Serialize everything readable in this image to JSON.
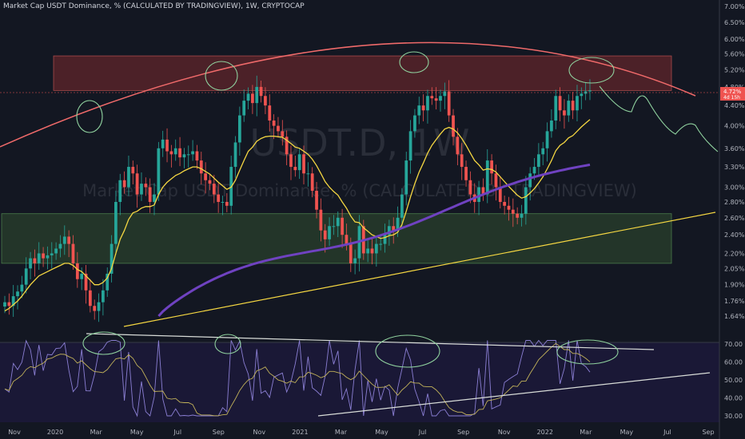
{
  "header": {
    "title": "Market Cap USDT Dominance, % (CALCULATED BY TRADINGVIEW), 1W, CRYPTOCAP"
  },
  "watermark": {
    "symbol": "USDT.D, 1W",
    "description": "Market Cap USDT Dominance, % (CALCULATED BY TRADINGVIEW)"
  },
  "price_label": {
    "value": "4.72%",
    "sub": "4d 15h"
  },
  "colors": {
    "background": "#131722",
    "up": "#26a69a",
    "down": "#ef5350",
    "resistance_zone": "#7b2a2e",
    "support_zone": "#2e4a2e",
    "arc": "#f06a6a",
    "ema_yellow": "#f5d742",
    "ma_purple": "#6f42c1",
    "annotation": "#8fd19e",
    "rsi": "#8b7fd4"
  },
  "chart_data": {
    "type": "candlestick",
    "interval": "1W",
    "price_axis": {
      "scale": "log",
      "ticks": [
        "7.00%",
        "6.50%",
        "6.00%",
        "5.60%",
        "5.20%",
        "4.80%",
        "4.40%",
        "4.00%",
        "3.60%",
        "3.30%",
        "3.00%",
        "2.80%",
        "2.60%",
        "2.40%",
        "2.20%",
        "2.05%",
        "1.90%",
        "1.76%",
        "1.64%"
      ]
    },
    "time_axis": {
      "ticks": [
        "Nov",
        "2020",
        "Mar",
        "May",
        "Jul",
        "Sep",
        "Nov",
        "2021",
        "Mar",
        "May",
        "Jul",
        "Sep",
        "Nov",
        "2022",
        "Mar",
        "May",
        "Jul",
        "Sep"
      ]
    },
    "zones": [
      {
        "name": "resistance",
        "low": 4.72,
        "high": 5.55
      },
      {
        "name": "support",
        "low": 2.1,
        "high": 2.65
      }
    ],
    "candles_close": [
      1.75,
      1.72,
      1.8,
      1.84,
      1.9,
      2.05,
      2.15,
      2.1,
      2.2,
      2.15,
      2.18,
      2.2,
      2.25,
      2.3,
      2.38,
      2.3,
      2.1,
      1.95,
      2.0,
      1.85,
      1.72,
      1.68,
      1.75,
      1.85,
      2.0,
      2.3,
      2.8,
      3.1,
      3.0,
      3.3,
      3.2,
      2.9,
      3.05,
      3.0,
      2.8,
      2.9,
      3.6,
      3.75,
      3.55,
      3.5,
      3.6,
      3.45,
      3.5,
      3.5,
      3.55,
      3.4,
      3.2,
      3.1,
      3.05,
      2.9,
      2.8,
      2.8,
      2.75,
      3.3,
      3.7,
      4.2,
      4.5,
      4.65,
      4.45,
      4.8,
      4.6,
      4.4,
      4.1,
      4.0,
      3.9,
      3.8,
      3.5,
      3.3,
      3.25,
      3.5,
      3.2,
      3.2,
      2.95,
      2.7,
      2.45,
      2.35,
      2.5,
      2.5,
      2.6,
      2.4,
      2.3,
      2.1,
      2.15,
      2.5,
      2.2,
      2.25,
      2.2,
      2.3,
      2.3,
      2.4,
      2.5,
      2.45,
      2.6,
      2.9,
      3.4,
      3.9,
      4.2,
      4.4,
      4.3,
      4.6,
      4.55,
      4.5,
      4.6,
      4.7,
      4.2,
      3.8,
      3.5,
      3.3,
      3.1,
      2.9,
      2.8,
      3.0,
      2.9,
      3.4,
      3.2,
      3.0,
      2.8,
      2.75,
      2.7,
      2.65,
      2.6,
      2.65,
      3.0,
      3.2,
      3.3,
      3.5,
      3.6,
      3.9,
      4.1,
      4.6,
      4.3,
      4.2,
      4.5,
      4.3,
      4.6,
      4.65,
      4.7,
      4.72
    ],
    "ema_yellow": [
      1.68,
      1.7,
      1.73,
      1.76,
      1.8,
      1.85,
      1.9,
      1.94,
      1.98,
      2.0,
      2.02,
      2.04,
      2.06,
      2.08,
      2.1,
      2.1,
      2.08,
      2.04,
      2.02,
      1.98,
      1.94,
      1.9,
      1.9,
      1.92,
      1.96,
      2.05,
      2.2,
      2.35,
      2.45,
      2.58,
      2.66,
      2.68,
      2.72,
      2.74,
      2.74,
      2.76,
      2.9,
      3.0,
      3.07,
      3.12,
      3.17,
      3.2,
      3.24,
      3.27,
      3.3,
      3.3,
      3.27,
      3.23,
      3.19,
      3.13,
      3.07,
      3.02,
      2.97,
      3.0,
      3.1,
      3.25,
      3.4,
      3.55,
      3.62,
      3.72,
      3.77,
      3.8,
      3.81,
      3.81,
      3.8,
      3.79,
      3.74,
      3.68,
      3.62,
      3.6,
      3.55,
      3.5,
      3.42,
      3.32,
      3.2,
      3.08,
      3.0,
      2.94,
      2.89,
      2.8,
      2.72,
      2.62,
      2.55,
      2.54,
      2.48,
      2.44,
      2.4,
      2.38,
      2.36,
      2.37,
      2.39,
      2.4,
      2.43,
      2.52,
      2.68,
      2.87,
      3.05,
      3.22,
      3.36,
      3.52,
      3.65,
      3.75,
      3.85,
      3.94,
      3.97,
      3.94,
      3.87,
      3.77,
      3.65,
      3.52,
      3.4,
      3.33,
      3.25,
      3.27,
      3.26,
      3.22,
      3.15,
      3.08,
      3.01,
      2.95,
      2.89,
      2.85,
      2.87,
      2.92,
      2.98,
      3.06,
      3.15,
      3.27,
      3.4,
      3.56,
      3.65,
      3.7,
      3.78,
      3.82,
      3.9,
      3.98,
      4.05,
      4.12
    ],
    "ma_purple_start": 1.64,
    "ma_purple_end": 3.3,
    "rsi_axis": {
      "ticks": [
        "70.00",
        "60.00",
        "50.00",
        "40.00",
        "30.00"
      ]
    }
  }
}
